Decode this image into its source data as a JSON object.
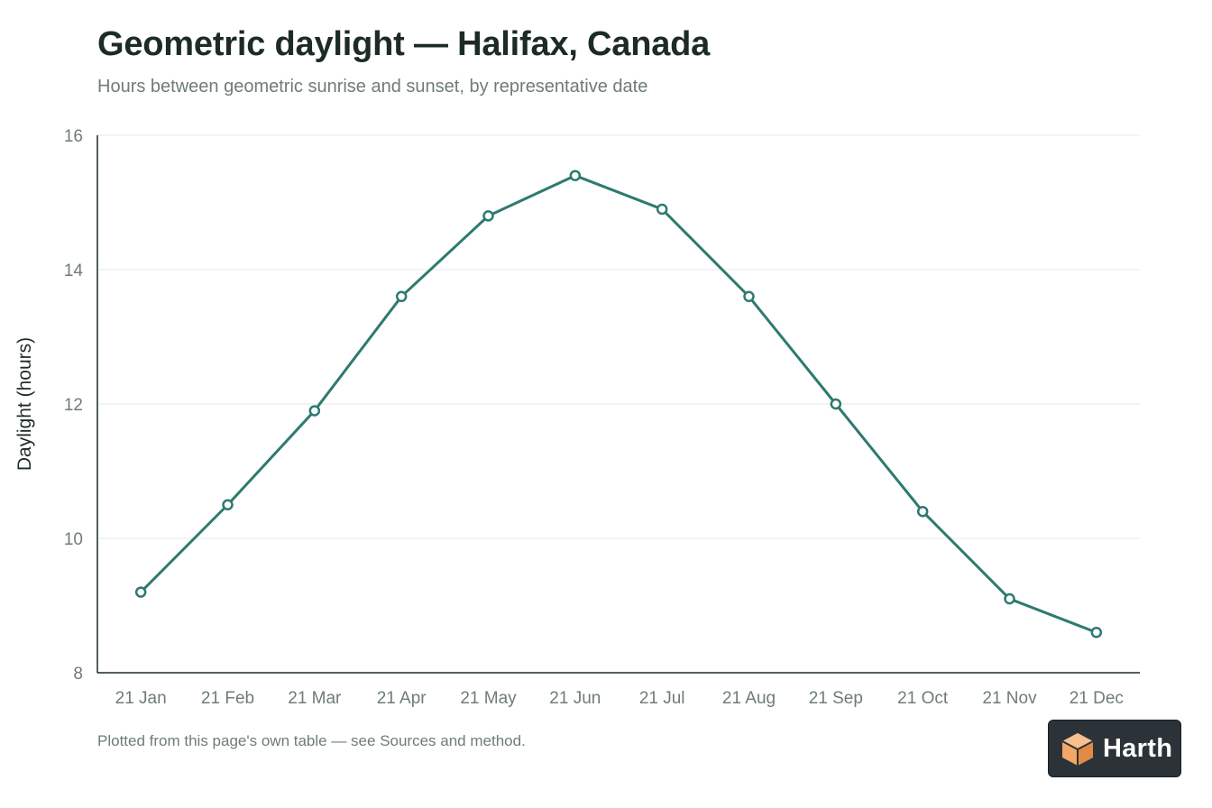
{
  "chart_data": {
    "type": "line",
    "title": "Geometric daylight — Halifax, Canada",
    "subtitle": "Hours between geometric sunrise and sunset, by representative date",
    "ylabel": "Daylight (hours)",
    "xlabel": "",
    "ylim": [
      8,
      16
    ],
    "yticks": [
      "8",
      "10",
      "12",
      "14",
      "16"
    ],
    "grid": true,
    "categories": [
      "21 Jan",
      "21 Feb",
      "21 Mar",
      "21 Apr",
      "21 May",
      "21 Jun",
      "21 Jul",
      "21 Aug",
      "21 Sep",
      "21 Oct",
      "21 Nov",
      "21 Dec"
    ],
    "series": [
      {
        "values": [
          9.2,
          10.5,
          11.9,
          13.6,
          14.8,
          15.4,
          14.9,
          13.6,
          12.0,
          10.4,
          9.1,
          8.6
        ]
      }
    ],
    "line_color": "#2e7a70",
    "footnote": "Plotted from this page's own table — see Sources and method."
  },
  "badge": {
    "label": "Harth",
    "icon": "cube-logo-icon",
    "accent": "#f2a766"
  }
}
